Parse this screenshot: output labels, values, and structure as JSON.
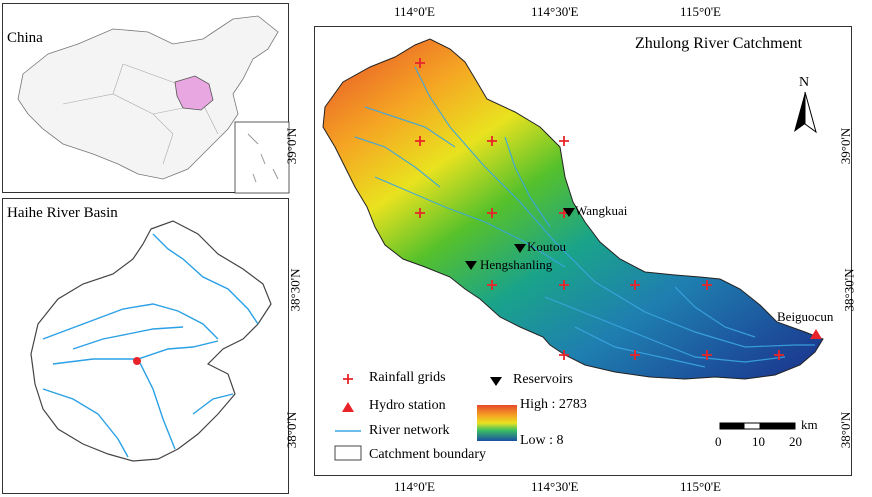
{
  "inset_china": {
    "title": "China"
  },
  "inset_haihe": {
    "title": "Haihe River Basin"
  },
  "main_map": {
    "title": "Zhulong River Catchment",
    "north_label": "N",
    "lon_ticks": [
      "114°0'E",
      "114°30'E",
      "115°0'E"
    ],
    "lat_ticks": [
      "39°0'N",
      "38°30'N",
      "38°0'N"
    ],
    "stations": {
      "reservoirs": [
        "Wangkuai",
        "Koutou",
        "Hengshanling"
      ],
      "hydro": [
        "Beiguocun"
      ]
    },
    "scale_bar": {
      "labels": [
        "0",
        "10",
        "20"
      ],
      "unit": "km"
    },
    "elevation": {
      "high": "High : 2783",
      "low": "Low : 8"
    },
    "legend": {
      "rainfall": "Rainfall grids",
      "reservoirs": "Reservoirs",
      "hydro": "Hydro station",
      "river": "River network",
      "boundary": "Catchment boundary"
    },
    "colors": {
      "river": "#3aa6e0",
      "rainfall": "#e8242a",
      "hydro": "#e8242a",
      "high": "#d9452a",
      "low": "#1f2f8f"
    }
  }
}
